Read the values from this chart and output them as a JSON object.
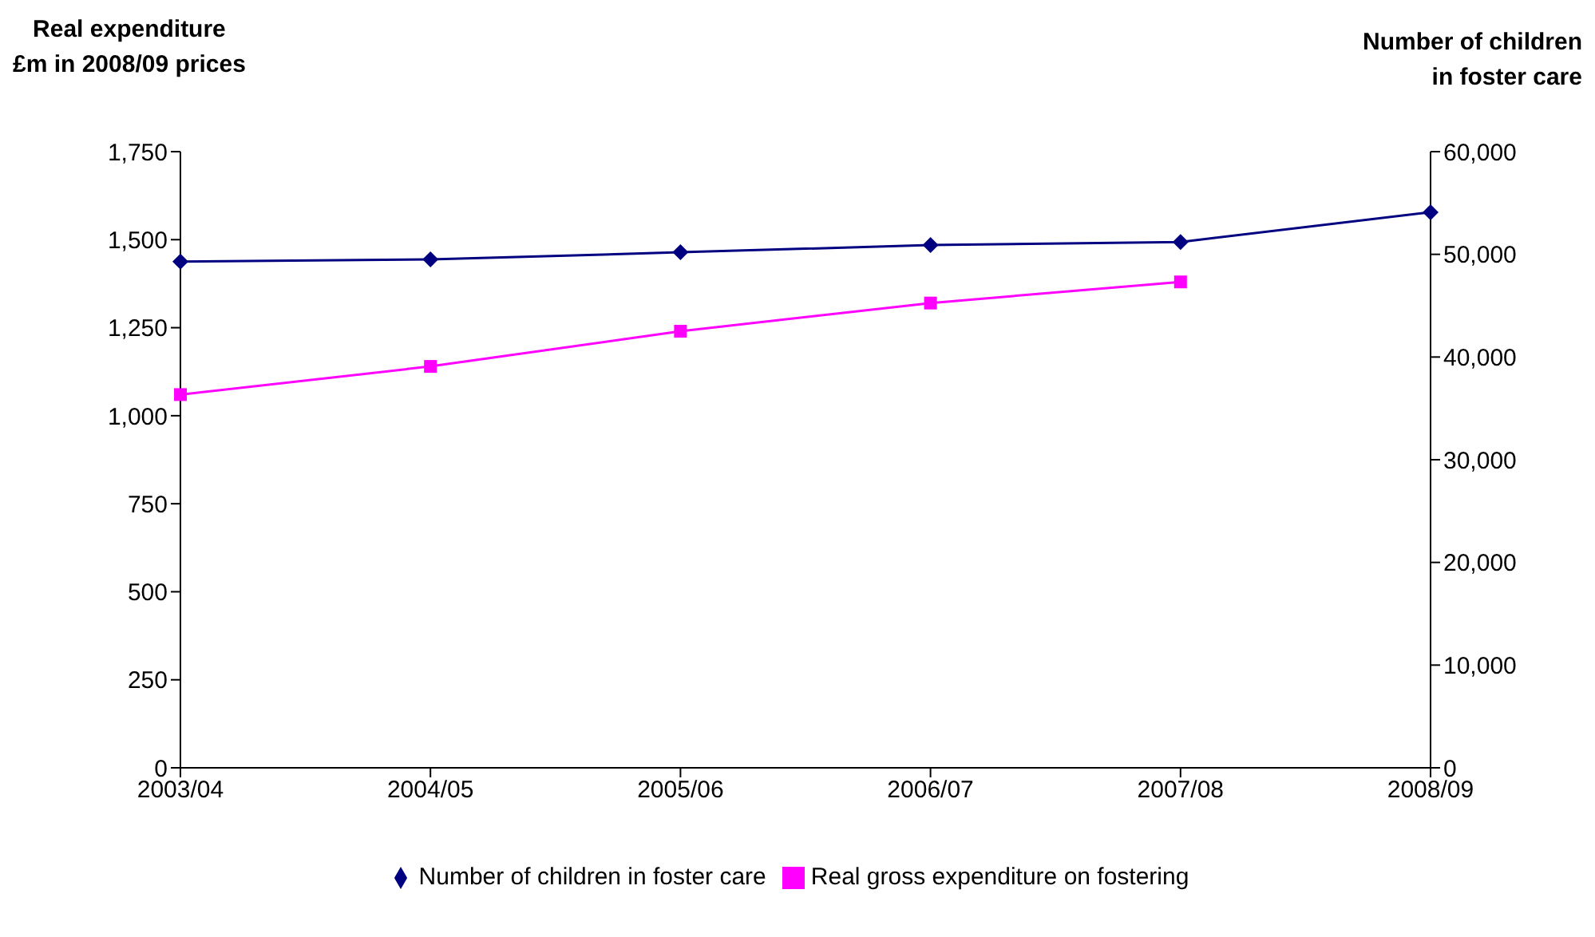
{
  "chart_data": {
    "type": "line",
    "ylabel": "Real expenditure\n£m in 2008/09 prices",
    "y2label": "Number of children\nin foster care",
    "categories": [
      "2003/04",
      "2004/05",
      "2005/06",
      "2006/07",
      "2007/08",
      "2008/09"
    ],
    "series": [
      {
        "name": "Real gross expenditure on fostering",
        "color": "#ff00ff",
        "marker": "square",
        "values": [
          1060,
          1140,
          1240,
          1320,
          1380,
          null
        ]
      },
      {
        "name": "Number of children in foster care",
        "color": "#000080",
        "marker": "diamond",
        "axis": "y2",
        "values": [
          49300,
          49500,
          50200,
          50900,
          51200,
          54100
        ]
      }
    ],
    "ylim": [
      0,
      1750
    ],
    "yticks": [
      0,
      250,
      500,
      750,
      {
        "value": 1000,
        "label": "1,000"
      },
      {
        "value": 1250,
        "label": "1,250"
      },
      {
        "value": 1500,
        "label": "1,500"
      },
      {
        "value": 1750,
        "label": "1,750"
      }
    ],
    "y2lim": [
      0,
      60000
    ],
    "y2ticks": [
      0,
      {
        "value": 10000,
        "label": "10,000"
      },
      {
        "value": 20000,
        "label": "20,000"
      },
      {
        "value": 30000,
        "label": "30,000"
      },
      {
        "value": 40000,
        "label": "40,000"
      },
      {
        "value": 50000,
        "label": "50,000"
      },
      {
        "value": 60000,
        "label": "60,000"
      }
    ],
    "grid": false,
    "legend": "bottom"
  }
}
